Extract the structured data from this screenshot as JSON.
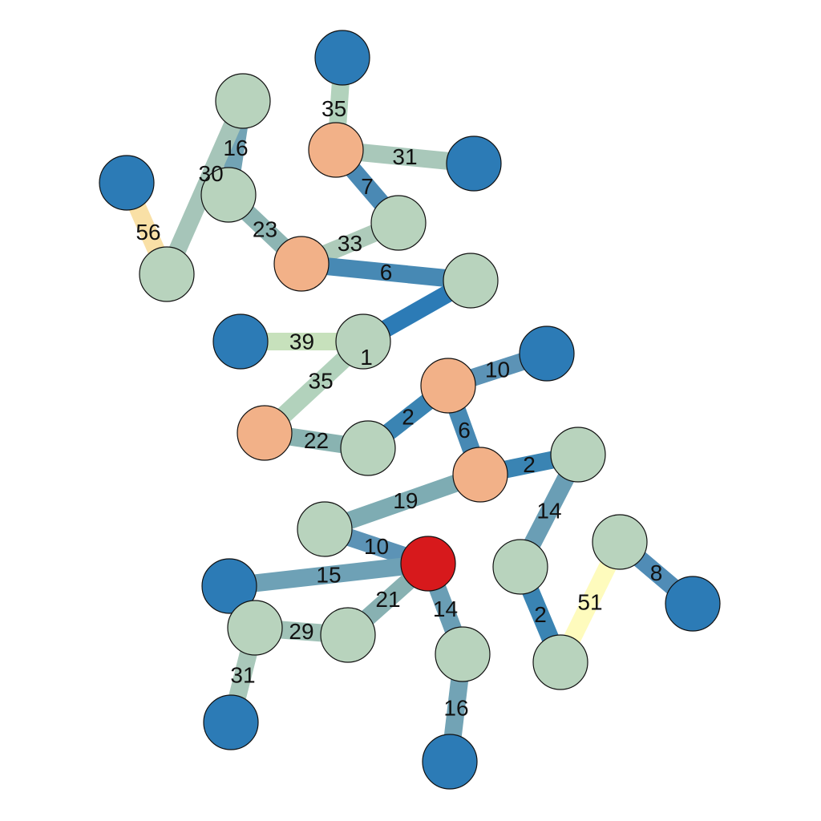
{
  "palette": {
    "leaf": "#2c7bb6",
    "inner": "#b8d3bd",
    "hub": "#f2b188",
    "root": "#d7191c"
  },
  "edge_colors": {
    "e1": "#2c7bb6",
    "e2": "#3a84b3",
    "e6": "#4789b4",
    "e7": "#4a89b4",
    "e8": "#508cb6",
    "e10": "#5c93b6",
    "e14": "#6a9eb5",
    "e15": "#6ea1b6",
    "e16": "#72a3b5",
    "e19": "#7eacb3",
    "e21": "#88b1b2",
    "e22": "#89b3b1",
    "e23": "#8db5b3",
    "e29": "#a0c2b7",
    "e30": "#a6c5b9",
    "e31": "#a9c8ba",
    "e33": "#aecbba",
    "e35": "#b2d2bc",
    "e39": "#c7e1bc",
    "e51": "#fefbbd",
    "e56": "#f9e0a6"
  },
  "nodes": [
    {
      "id": "n1",
      "type": "leaf"
    },
    {
      "id": "n2",
      "type": "inner"
    },
    {
      "id": "n3",
      "type": "hub"
    },
    {
      "id": "n4",
      "type": "leaf"
    },
    {
      "id": "n5",
      "type": "leaf"
    },
    {
      "id": "n6",
      "type": "inner"
    },
    {
      "id": "n7",
      "type": "inner"
    },
    {
      "id": "n8",
      "type": "hub"
    },
    {
      "id": "n9",
      "type": "inner"
    },
    {
      "id": "n10",
      "type": "inner"
    },
    {
      "id": "n11",
      "type": "leaf"
    },
    {
      "id": "n12",
      "type": "inner"
    },
    {
      "id": "n13",
      "type": "hub"
    },
    {
      "id": "n14",
      "type": "leaf"
    },
    {
      "id": "n15",
      "type": "hub"
    },
    {
      "id": "n16",
      "type": "inner"
    },
    {
      "id": "n17",
      "type": "hub"
    },
    {
      "id": "n18",
      "type": "inner"
    },
    {
      "id": "n19",
      "type": "inner"
    },
    {
      "id": "n20",
      "type": "root"
    },
    {
      "id": "n21",
      "type": "leaf"
    },
    {
      "id": "n22",
      "type": "inner"
    },
    {
      "id": "n23",
      "type": "inner"
    },
    {
      "id": "n24",
      "type": "inner"
    },
    {
      "id": "n25",
      "type": "leaf"
    },
    {
      "id": "n26",
      "type": "leaf"
    },
    {
      "id": "n27",
      "type": "inner"
    },
    {
      "id": "n28",
      "type": "inner"
    },
    {
      "id": "n29",
      "type": "inner"
    },
    {
      "id": "n30",
      "type": "leaf"
    }
  ],
  "edges": [
    {
      "from": "n1",
      "to": "n3",
      "label": "35",
      "weight": 35
    },
    {
      "from": "n3",
      "to": "n4",
      "label": "31",
      "weight": 31
    },
    {
      "from": "n3",
      "to": "n7",
      "label": "7",
      "weight": 7
    },
    {
      "from": "n7",
      "to": "n8",
      "label": "33",
      "weight": 33
    },
    {
      "from": "n2",
      "to": "n6",
      "label": "16",
      "weight": 16
    },
    {
      "from": "n6",
      "to": "n8",
      "label": "23",
      "weight": 23
    },
    {
      "from": "n2",
      "to": "n9",
      "label": "30",
      "weight": 30
    },
    {
      "from": "n5",
      "to": "n9",
      "label": "56",
      "weight": 56
    },
    {
      "from": "n8",
      "to": "n10",
      "label": "6",
      "weight": 6
    },
    {
      "from": "n10",
      "to": "n12",
      "label": "1",
      "weight": 1
    },
    {
      "from": "n11",
      "to": "n12",
      "label": "39",
      "weight": 39
    },
    {
      "from": "n12",
      "to": "n15",
      "label": "35",
      "weight": 35
    },
    {
      "from": "n15",
      "to": "n16",
      "label": "22",
      "weight": 22
    },
    {
      "from": "n16",
      "to": "n13",
      "label": "2",
      "weight": 2
    },
    {
      "from": "n13",
      "to": "n14",
      "label": "10",
      "weight": 10
    },
    {
      "from": "n13",
      "to": "n17",
      "label": "6",
      "weight": 6
    },
    {
      "from": "n17",
      "to": "n18",
      "label": "2",
      "weight": 2
    },
    {
      "from": "n17",
      "to": "n19",
      "label": "19",
      "weight": 19
    },
    {
      "from": "n19",
      "to": "n20",
      "label": "10",
      "weight": 10
    },
    {
      "from": "n21",
      "to": "n20",
      "label": "15",
      "weight": 15
    },
    {
      "from": "n24",
      "to": "n20",
      "label": "21",
      "weight": 21
    },
    {
      "from": "n20",
      "to": "n27",
      "label": "14",
      "weight": 14
    },
    {
      "from": "n23",
      "to": "n24",
      "label": "29",
      "weight": 29
    },
    {
      "from": "n23",
      "to": "n25",
      "label": "31",
      "weight": 31
    },
    {
      "from": "n27",
      "to": "n30",
      "label": "16",
      "weight": 16
    },
    {
      "from": "n18",
      "to": "n22",
      "label": "14",
      "weight": 14
    },
    {
      "from": "n22",
      "to": "n28",
      "label": "2",
      "weight": 2
    },
    {
      "from": "n28",
      "to": "n29",
      "label": "51",
      "weight": 51
    },
    {
      "from": "n29",
      "to": "n26",
      "label": "8",
      "weight": 8
    }
  ]
}
